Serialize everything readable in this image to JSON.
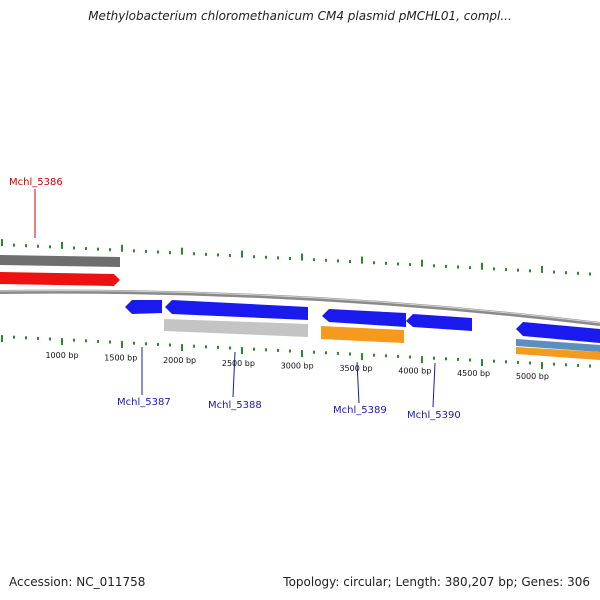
{
  "title": "Methylobacterium chloromethanicum CM4 plasmid pMCHL01, compl...",
  "footer": {
    "accession": "Accession: NC_011758",
    "summary": "Topology: circular; Length: 380,207 bp; Genes: 306"
  },
  "colors": {
    "tick": "#2a8a2a",
    "backbone": "#8a8a8a",
    "label_red": "#d40000",
    "label_blue": "#1a1ab0",
    "gene_blue": "#1a1aee",
    "gene_red": "#ee1111",
    "gene_gray": "#6e6e6e",
    "gene_lightgray": "#c4c4c4",
    "gene_orange": "#f59a1e",
    "gene_steel": "#5a8fbf"
  },
  "scale": {
    "labels": [
      "1000 bp",
      "1500 bp",
      "2000 bp",
      "2500 bp",
      "3000 bp",
      "3500 bp",
      "4000 bp",
      "4500 bp",
      "5000 bp"
    ]
  },
  "genes": [
    {
      "name": "Mchl_5386",
      "color": "red"
    },
    {
      "name": "Mchl_5387",
      "color": "blue"
    },
    {
      "name": "Mchl_5388",
      "color": "blue"
    },
    {
      "name": "Mchl_5389",
      "color": "blue"
    },
    {
      "name": "Mchl_5390",
      "color": "blue"
    }
  ]
}
